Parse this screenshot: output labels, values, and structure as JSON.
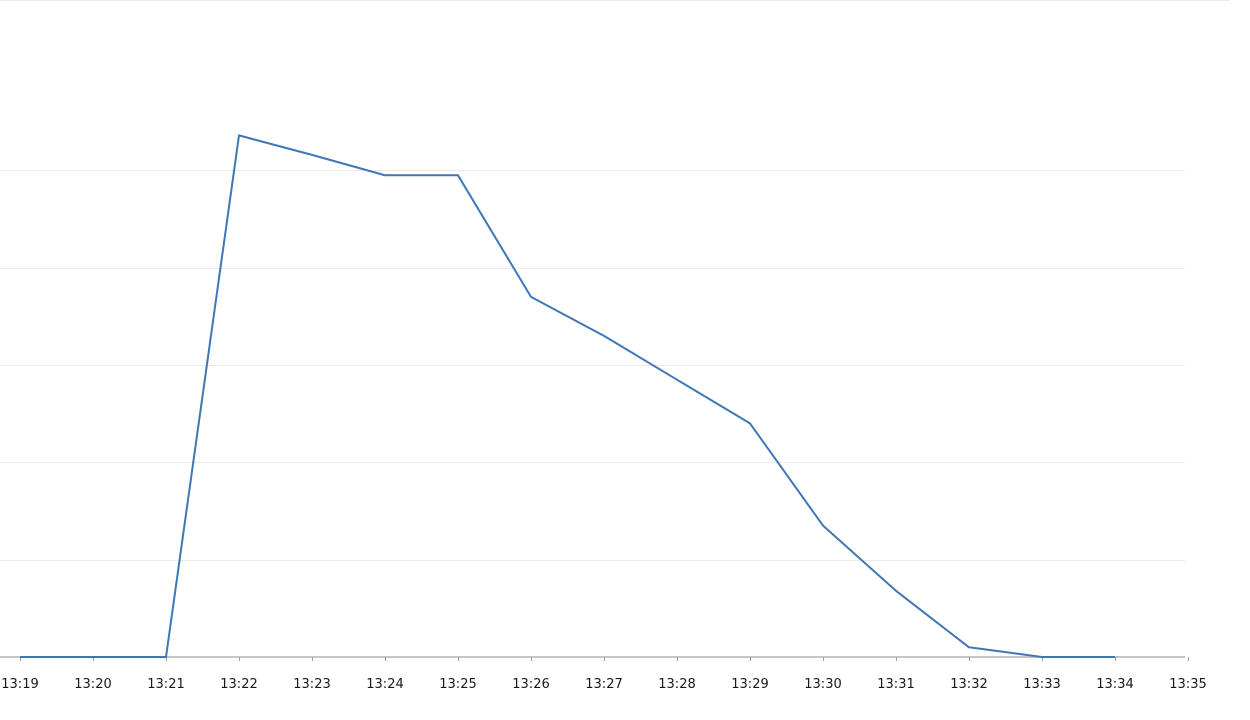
{
  "chart_data": {
    "type": "line",
    "x": [
      "13:19",
      "13:20",
      "13:21",
      "13:22",
      "13:23",
      "13:24",
      "13:25",
      "13:26",
      "13:27",
      "13:28",
      "13:29",
      "13:30",
      "13:31",
      "13:32",
      "13:33",
      "13:34",
      "13:35"
    ],
    "series": [
      {
        "values": [
          0,
          0,
          0,
          5.36,
          5.16,
          4.95,
          4.95,
          3.7,
          3.3,
          2.85,
          2.4,
          1.35,
          0.68,
          0.1,
          0,
          0,
          null
        ]
      }
    ],
    "ylim": [
      0,
      6.7
    ],
    "y_gridlines": [
      1,
      2,
      3,
      4,
      5
    ],
    "y_tick_labels_visible": false,
    "grid": true,
    "colors": {
      "series": "#3f77b5"
    }
  }
}
